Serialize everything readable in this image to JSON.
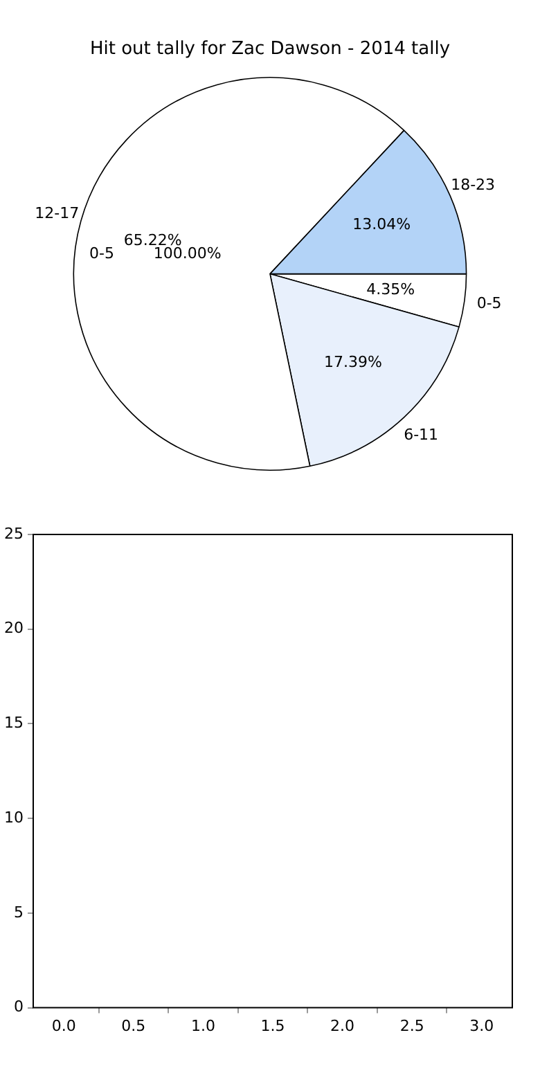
{
  "chart_data": [
    {
      "type": "pie",
      "title": "Hit out tally for Zac Dawson - 2014 tally",
      "categories": [
        "0-5",
        "6-11",
        "12-17",
        "18-23"
      ],
      "values": [
        4.35,
        17.39,
        65.22,
        13.04
      ],
      "colors": [
        "#ffffff",
        "#e8f0fc",
        "#ffffff",
        "#b3d3f7"
      ],
      "value_labels": [
        "4.35%",
        "17.39%",
        "65.22%",
        "13.04%"
      ],
      "annotations": [
        "0-5",
        "100.00%"
      ],
      "legend": false
    },
    {
      "type": "bar",
      "xlim": [
        -0.22,
        3.22
      ],
      "xticks": [
        {
          "value": 0,
          "label": "0.0"
        },
        {
          "value": 0.5,
          "label": "0.5"
        },
        {
          "value": 1,
          "label": "1.0"
        },
        {
          "value": 1.5,
          "label": "1.5"
        },
        {
          "value": 2,
          "label": "2.0"
        },
        {
          "value": 2.5,
          "label": "2.5"
        },
        {
          "value": 3,
          "label": "3.0"
        }
      ],
      "ylim": [
        0,
        25
      ],
      "yticks": [
        0,
        5,
        10,
        15,
        20,
        25
      ],
      "grid": false,
      "legend": false
    }
  ]
}
